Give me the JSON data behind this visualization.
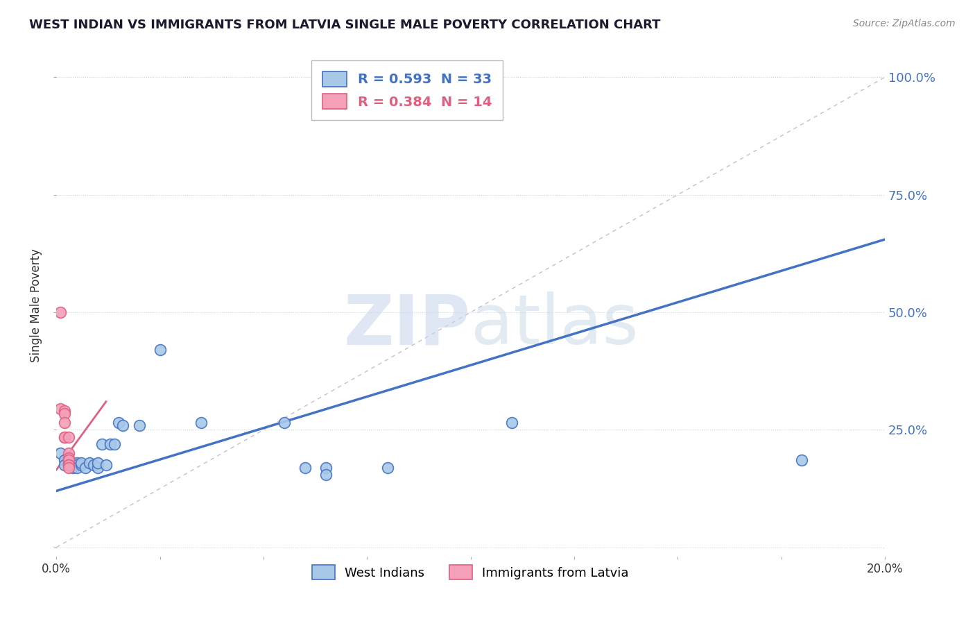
{
  "title": "WEST INDIAN VS IMMIGRANTS FROM LATVIA SINGLE MALE POVERTY CORRELATION CHART",
  "source": "Source: ZipAtlas.com",
  "ylabel": "Single Male Poverty",
  "r_west_indian": 0.593,
  "n_west_indian": 33,
  "r_latvia": 0.384,
  "n_latvia": 14,
  "west_indian_color": "#a8c8e8",
  "west_indian_line_color": "#4472c4",
  "latvia_color": "#f4a0b8",
  "latvia_line_color": "#e06080",
  "background_color": "#ffffff",
  "west_indian_points": [
    [
      0.001,
      0.2
    ],
    [
      0.002,
      0.185
    ],
    [
      0.002,
      0.175
    ],
    [
      0.003,
      0.18
    ],
    [
      0.003,
      0.185
    ],
    [
      0.004,
      0.17
    ],
    [
      0.004,
      0.175
    ],
    [
      0.005,
      0.18
    ],
    [
      0.005,
      0.175
    ],
    [
      0.005,
      0.17
    ],
    [
      0.006,
      0.175
    ],
    [
      0.006,
      0.18
    ],
    [
      0.007,
      0.17
    ],
    [
      0.008,
      0.18
    ],
    [
      0.009,
      0.175
    ],
    [
      0.01,
      0.17
    ],
    [
      0.01,
      0.18
    ],
    [
      0.011,
      0.22
    ],
    [
      0.012,
      0.175
    ],
    [
      0.013,
      0.22
    ],
    [
      0.014,
      0.22
    ],
    [
      0.015,
      0.265
    ],
    [
      0.016,
      0.26
    ],
    [
      0.02,
      0.26
    ],
    [
      0.025,
      0.42
    ],
    [
      0.035,
      0.265
    ],
    [
      0.055,
      0.265
    ],
    [
      0.06,
      0.17
    ],
    [
      0.065,
      0.17
    ],
    [
      0.065,
      0.155
    ],
    [
      0.08,
      0.17
    ],
    [
      0.11,
      0.265
    ],
    [
      0.18,
      0.185
    ]
  ],
  "latvia_points": [
    [
      0.001,
      0.5
    ],
    [
      0.001,
      0.295
    ],
    [
      0.002,
      0.29
    ],
    [
      0.002,
      0.285
    ],
    [
      0.002,
      0.265
    ],
    [
      0.002,
      0.235
    ],
    [
      0.002,
      0.235
    ],
    [
      0.003,
      0.235
    ],
    [
      0.003,
      0.2
    ],
    [
      0.003,
      0.19
    ],
    [
      0.003,
      0.185
    ],
    [
      0.003,
      0.175
    ],
    [
      0.003,
      0.175
    ],
    [
      0.003,
      0.17
    ]
  ],
  "xlim": [
    0.0,
    0.2
  ],
  "ylim": [
    -0.02,
    1.05
  ],
  "yticks": [
    0.0,
    0.25,
    0.5,
    0.75,
    1.0
  ],
  "ytick_labels": [
    "",
    "25.0%",
    "50.0%",
    "75.0%",
    "100.0%"
  ],
  "blue_line_x": [
    0.0,
    0.2
  ],
  "blue_line_y": [
    0.12,
    0.655
  ],
  "pink_line_x": [
    0.0,
    0.012
  ],
  "pink_line_y": [
    0.165,
    0.31
  ],
  "diag_line_x": [
    0.0,
    0.2
  ],
  "diag_line_y": [
    0.0,
    1.0
  ]
}
